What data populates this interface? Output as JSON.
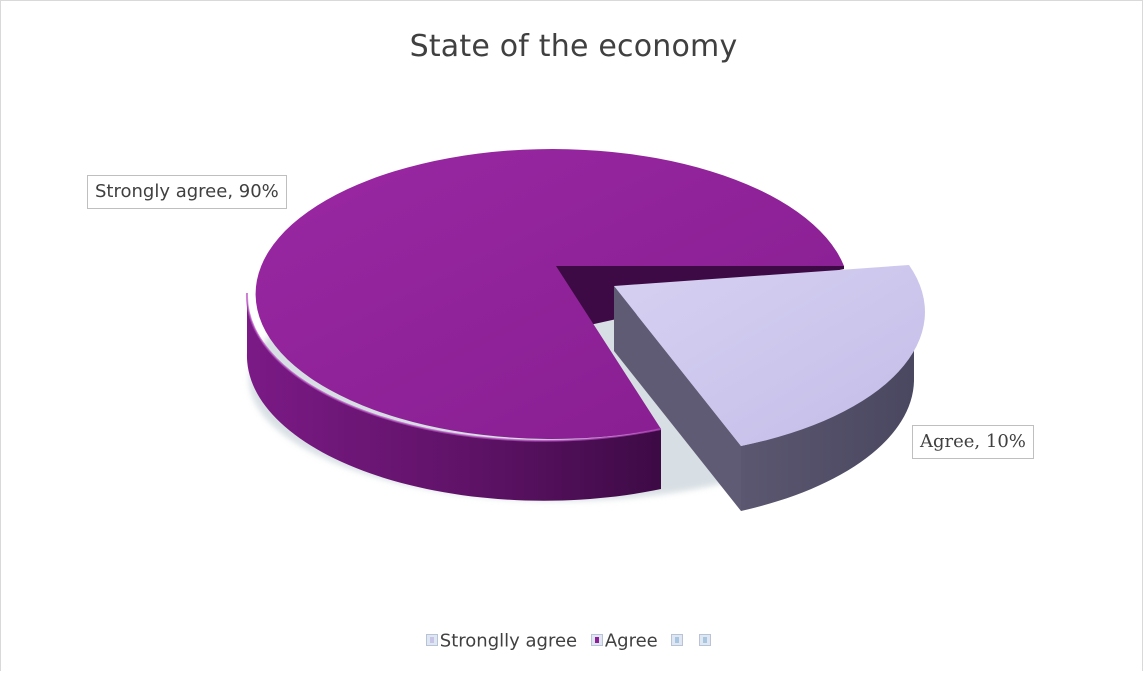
{
  "chart_data": {
    "type": "pie",
    "title": "State of the economy",
    "slices": [
      {
        "name": "Strongly agree",
        "value": 90,
        "label": "Strongly agree, 90%"
      },
      {
        "name": "Agree",
        "value": 10,
        "label": "Agree, 10%"
      }
    ],
    "legend": {
      "position": "bottom",
      "entries": [
        "Stronglly agree",
        "Agree",
        "",
        ""
      ]
    },
    "colors": {
      "strongly_top": "#8e2196",
      "strongly_side": "#5e1266",
      "strongly_dark": "#3d0a45",
      "agree_top": "#ccc6ec",
      "agree_side": "#565269",
      "legend_swatch_bg": "#dfe8f2",
      "legend_swatch_border": "#b8c4d6",
      "legend_inner_1": "#c8c4e8",
      "legend_inner_2": "#8e2196",
      "legend_inner_3": "#a8c6e0",
      "legend_inner_4": "#a8c6e0"
    },
    "exploded_slice": "Agree",
    "style": "3d"
  }
}
